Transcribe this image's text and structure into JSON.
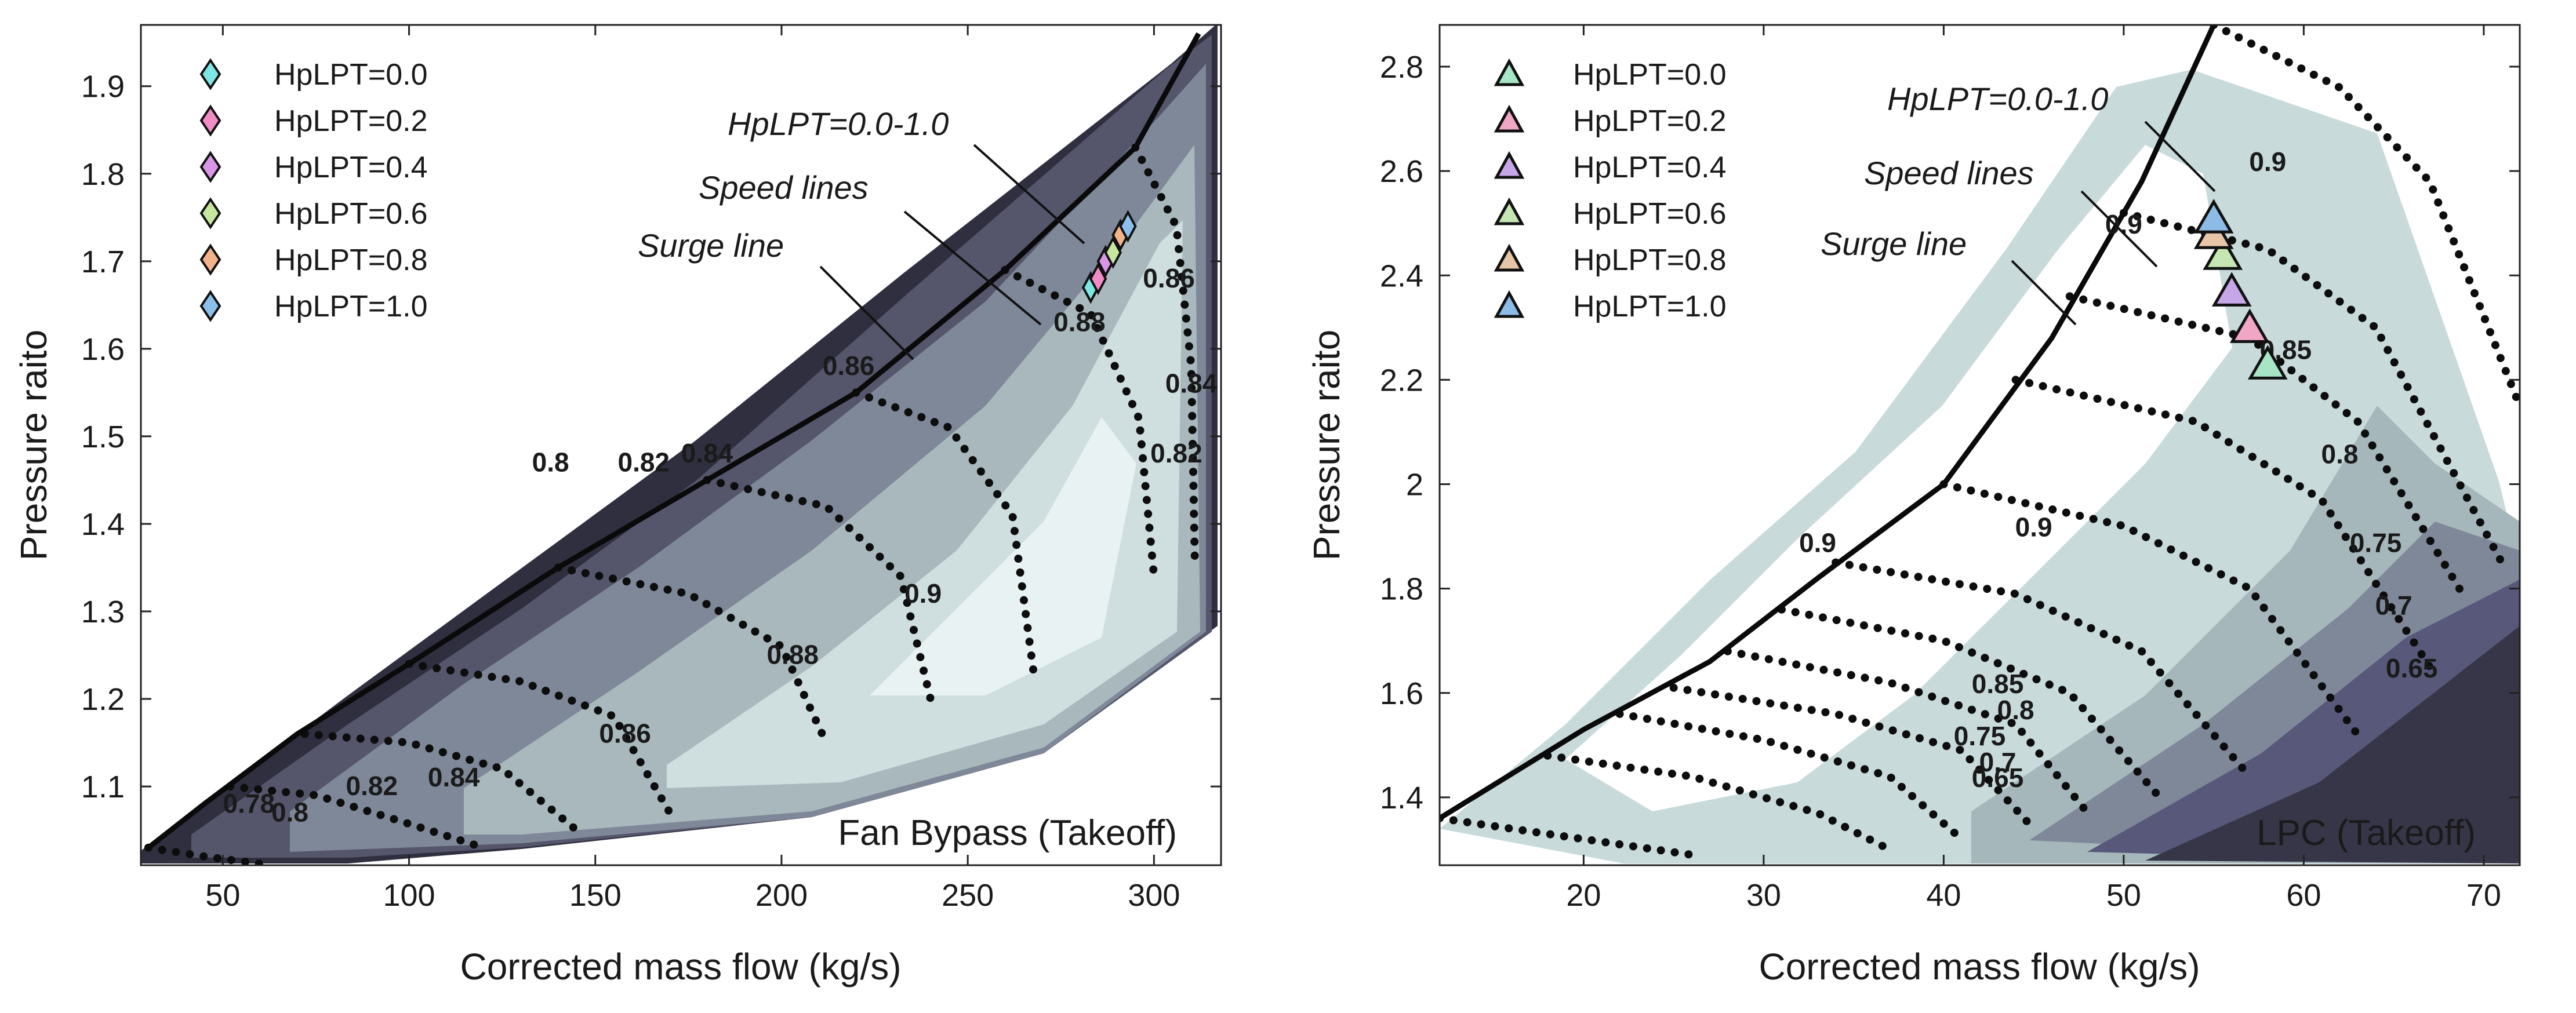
{
  "chart_data": [
    {
      "type": "contour",
      "title": "Fan Bypass (Takeoff)",
      "xlabel": "Corrected mass flow (kg/s)",
      "ylabel": "Pressure raito",
      "xlim": [
        28,
        318
      ],
      "ylim": [
        1.01,
        1.97
      ],
      "xticks": [
        50,
        100,
        150,
        200,
        250,
        300
      ],
      "yticks": [
        1.1,
        1.2,
        1.3,
        1.4,
        1.5,
        1.6,
        1.7,
        1.8,
        1.9
      ],
      "xtick_labels": [
        "50",
        "100",
        "150",
        "200",
        "250",
        "300"
      ],
      "ytick_labels": [
        "1.1",
        "1.2",
        "1.3",
        "1.4",
        "1.5",
        "1.6",
        "1.7",
        "1.8",
        "1.9"
      ],
      "legend": {
        "marker": "diamond",
        "entries": [
          {
            "label": "HpLPT=0.0",
            "color": "#7fe6e6"
          },
          {
            "label": "HpLPT=0.2",
            "color": "#f28cc7"
          },
          {
            "label": "HpLPT=0.4",
            "color": "#d996e6"
          },
          {
            "label": "HpLPT=0.6",
            "color": "#c6e6a0"
          },
          {
            "label": "HpLPT=0.8",
            "color": "#f2b38c"
          },
          {
            "label": "HpLPT=1.0",
            "color": "#8cc0ea"
          }
        ]
      },
      "annotations": {
        "hplpt_range": "HpLPT=0.0-1.0",
        "speed_lines": "Speed lines",
        "surge_line": "Surge line"
      },
      "surge_line": [
        [
          30,
          1.03
        ],
        [
          45,
          1.08
        ],
        [
          70,
          1.16
        ],
        [
          100,
          1.24
        ],
        [
          140,
          1.35
        ],
        [
          180,
          1.45
        ],
        [
          220,
          1.55
        ],
        [
          260,
          1.69
        ],
        [
          295,
          1.83
        ],
        [
          312,
          1.96
        ]
      ],
      "speed_lines": [
        [
          [
            30,
            1.03
          ],
          [
            45,
            1.02
          ],
          [
            63,
            1.01
          ]
        ],
        [
          [
            52,
            1.1
          ],
          [
            75,
            1.09
          ],
          [
            98,
            1.06
          ],
          [
            120,
            1.03
          ]
        ],
        [
          [
            72,
            1.16
          ],
          [
            100,
            1.15
          ],
          [
            125,
            1.12
          ],
          [
            145,
            1.05
          ]
        ],
        [
          [
            100,
            1.24
          ],
          [
            130,
            1.22
          ],
          [
            155,
            1.18
          ],
          [
            170,
            1.07
          ]
        ],
        [
          [
            140,
            1.35
          ],
          [
            175,
            1.32
          ],
          [
            200,
            1.26
          ],
          [
            212,
            1.15
          ]
        ],
        [
          [
            180,
            1.45
          ],
          [
            212,
            1.42
          ],
          [
            232,
            1.34
          ],
          [
            240,
            1.2
          ]
        ],
        [
          [
            220,
            1.55
          ],
          [
            245,
            1.51
          ],
          [
            262,
            1.41
          ],
          [
            268,
            1.22
          ]
        ],
        [
          [
            260,
            1.69
          ],
          [
            283,
            1.64
          ],
          [
            296,
            1.52
          ],
          [
            300,
            1.34
          ]
        ],
        [
          [
            295,
            1.83
          ],
          [
            306,
            1.74
          ],
          [
            310,
            1.58
          ],
          [
            311,
            1.35
          ]
        ]
      ],
      "efficiency_contour_labels": [
        {
          "label": "0.78",
          "x": 57,
          "y": 1.07
        },
        {
          "label": "0.8",
          "x": 68,
          "y": 1.06
        },
        {
          "label": "0.82",
          "x": 90,
          "y": 1.09
        },
        {
          "label": "0.84",
          "x": 112,
          "y": 1.1
        },
        {
          "label": "0.86",
          "x": 158,
          "y": 1.15
        },
        {
          "label": "0.88",
          "x": 203,
          "y": 1.24
        },
        {
          "label": "0.9",
          "x": 238,
          "y": 1.31
        },
        {
          "label": "0.8",
          "x": 138,
          "y": 1.46
        },
        {
          "label": "0.82",
          "x": 163,
          "y": 1.46
        },
        {
          "label": "0.84",
          "x": 180,
          "y": 1.47
        },
        {
          "label": "0.86",
          "x": 218,
          "y": 1.57
        },
        {
          "label": "0.88",
          "x": 280,
          "y": 1.62
        },
        {
          "label": "0.86",
          "x": 304,
          "y": 1.67
        },
        {
          "label": "0.84",
          "x": 310,
          "y": 1.55
        },
        {
          "label": "0.82",
          "x": 306,
          "y": 1.47
        }
      ],
      "hplpt_points": [
        {
          "hplpt": 0.0,
          "x": 283,
          "y": 1.67
        },
        {
          "hplpt": 0.2,
          "x": 285,
          "y": 1.68
        },
        {
          "hplpt": 0.4,
          "x": 287,
          "y": 1.7
        },
        {
          "hplpt": 0.6,
          "x": 289,
          "y": 1.71
        },
        {
          "hplpt": 0.8,
          "x": 291,
          "y": 1.73
        },
        {
          "hplpt": 1.0,
          "x": 293,
          "y": 1.74
        }
      ]
    },
    {
      "type": "contour",
      "title": "LPC (Takeoff)",
      "xlabel": "Corrected mass flow (kg/s)",
      "ylabel": "Pressure raito",
      "xlim": [
        12,
        72
      ],
      "ylim": [
        1.27,
        2.88
      ],
      "xticks": [
        20,
        30,
        40,
        50,
        60,
        70
      ],
      "yticks": [
        1.4,
        1.6,
        1.8,
        2,
        2.2,
        2.4,
        2.6,
        2.8
      ],
      "xtick_labels": [
        "20",
        "30",
        "40",
        "50",
        "60",
        "70"
      ],
      "ytick_labels": [
        "1.4",
        "1.6",
        "1.8",
        "2",
        "2.2",
        "2.4",
        "2.6",
        "2.8"
      ],
      "legend": {
        "marker": "triangle",
        "entries": [
          {
            "label": "HpLPT=0.0",
            "color": "#a6e6c6"
          },
          {
            "label": "HpLPT=0.2",
            "color": "#f2a6c6"
          },
          {
            "label": "HpLPT=0.4",
            "color": "#c6a6e6"
          },
          {
            "label": "HpLPT=0.6",
            "color": "#c6e6b3"
          },
          {
            "label": "HpLPT=0.8",
            "color": "#e6c6a6"
          },
          {
            "label": "HpLPT=1.0",
            "color": "#8cbbe6"
          }
        ]
      },
      "annotations": {
        "hplpt_range": "HpLPT=0.0-1.0",
        "speed_lines": "Speed lines",
        "surge_line": "Surge line"
      },
      "surge_line": [
        [
          12,
          1.36
        ],
        [
          20,
          1.53
        ],
        [
          27,
          1.66
        ],
        [
          33,
          1.82
        ],
        [
          40,
          2.0
        ],
        [
          46,
          2.28
        ],
        [
          51,
          2.58
        ],
        [
          55,
          2.88
        ]
      ],
      "speed_lines": [
        [
          [
            12,
            1.36
          ],
          [
            20,
            1.32
          ],
          [
            26,
            1.29
          ]
        ],
        [
          [
            18,
            1.48
          ],
          [
            26,
            1.44
          ],
          [
            33,
            1.37
          ],
          [
            37,
            1.3
          ]
        ],
        [
          [
            22,
            1.56
          ],
          [
            30,
            1.51
          ],
          [
            37,
            1.44
          ],
          [
            41,
            1.32
          ]
        ],
        [
          [
            25,
            1.61
          ],
          [
            34,
            1.56
          ],
          [
            41,
            1.49
          ],
          [
            45,
            1.34
          ]
        ],
        [
          [
            28,
            1.68
          ],
          [
            37,
            1.62
          ],
          [
            44,
            1.54
          ],
          [
            48,
            1.37
          ]
        ],
        [
          [
            31,
            1.76
          ],
          [
            40,
            1.7
          ],
          [
            47,
            1.6
          ],
          [
            52,
            1.4
          ]
        ],
        [
          [
            34,
            1.85
          ],
          [
            44,
            1.79
          ],
          [
            51,
            1.68
          ],
          [
            57,
            1.44
          ]
        ],
        [
          [
            40,
            2.0
          ],
          [
            50,
            1.92
          ],
          [
            57,
            1.8
          ],
          [
            63,
            1.52
          ]
        ],
        [
          [
            44,
            2.2
          ],
          [
            54,
            2.12
          ],
          [
            61,
            1.97
          ],
          [
            67,
            1.65
          ]
        ],
        [
          [
            47,
            2.36
          ],
          [
            57,
            2.28
          ],
          [
            63,
            2.12
          ],
          [
            69,
            1.78
          ]
        ],
        [
          [
            50,
            2.52
          ],
          [
            58,
            2.45
          ],
          [
            64,
            2.3
          ],
          [
            71,
            1.85
          ]
        ],
        [
          [
            55,
            2.88
          ],
          [
            62,
            2.76
          ],
          [
            67,
            2.58
          ],
          [
            72,
            2.15
          ]
        ]
      ],
      "efficiency_contour_labels": [
        {
          "label": "0.9",
          "x": 33,
          "y": 1.87
        },
        {
          "label": "0.9",
          "x": 45,
          "y": 1.9
        },
        {
          "label": "0.9",
          "x": 50,
          "y": 2.48
        },
        {
          "label": "0.9",
          "x": 58,
          "y": 2.6
        },
        {
          "label": "0.85",
          "x": 43,
          "y": 1.6
        },
        {
          "label": "0.8",
          "x": 44,
          "y": 1.55
        },
        {
          "label": "0.75",
          "x": 42,
          "y": 1.5
        },
        {
          "label": "0.7",
          "x": 43,
          "y": 1.45
        },
        {
          "label": "0.65",
          "x": 43,
          "y": 1.42
        },
        {
          "label": "0.85",
          "x": 59,
          "y": 2.24
        },
        {
          "label": "0.8",
          "x": 62,
          "y": 2.04
        },
        {
          "label": "0.75",
          "x": 64,
          "y": 1.87
        },
        {
          "label": "0.7",
          "x": 65,
          "y": 1.75
        },
        {
          "label": "0.65",
          "x": 66,
          "y": 1.63
        }
      ],
      "hplpt_points": [
        {
          "hplpt": 0.0,
          "x": 58,
          "y": 2.23
        },
        {
          "hplpt": 0.2,
          "x": 57,
          "y": 2.3
        },
        {
          "hplpt": 0.4,
          "x": 56,
          "y": 2.37
        },
        {
          "hplpt": 0.6,
          "x": 55.5,
          "y": 2.44
        },
        {
          "hplpt": 0.8,
          "x": 55,
          "y": 2.48
        },
        {
          "hplpt": 1.0,
          "x": 55,
          "y": 2.51
        }
      ]
    }
  ]
}
